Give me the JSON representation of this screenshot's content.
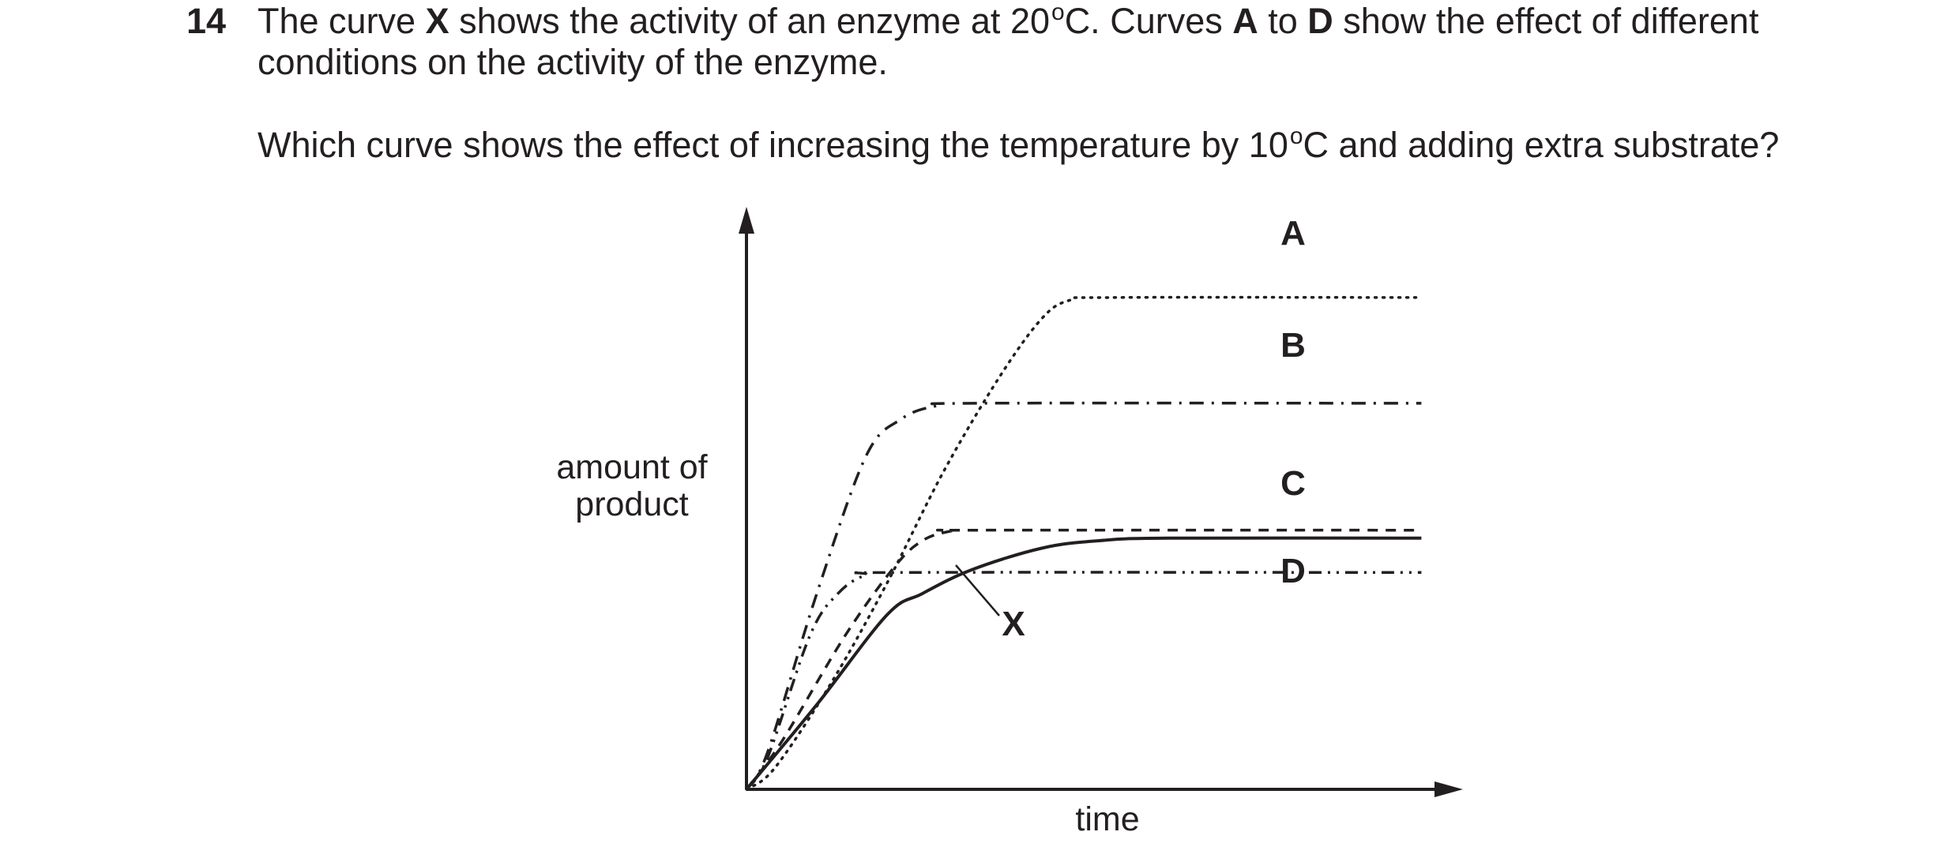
{
  "question": {
    "number": "14",
    "line1": {
      "t1": "The curve ",
      "b1": "X",
      "t2": " shows the activity of an enzyme at 20",
      "deg": "o",
      "t3": "C. Curves ",
      "b2": "A",
      "t4": " to ",
      "b3": "D",
      "t5": " show the effect of different"
    },
    "line2": "conditions on the activity of the enzyme.",
    "line3": {
      "t1": "Which curve shows the effect of increasing the temperature by 10",
      "deg": "o",
      "t2": "C and adding extra substrate?"
    }
  },
  "chart_data": {
    "type": "line",
    "xlabel": "time",
    "ylabel": [
      "amount of",
      "product"
    ],
    "xlim": [
      0,
      100
    ],
    "ylim": [
      0,
      100
    ],
    "ticks": "none",
    "grid": false,
    "legend": "labels beside curves",
    "series": [
      {
        "name": "A",
        "style": "dotted",
        "points": [
          [
            0,
            0
          ],
          [
            4,
            4
          ],
          [
            12,
            20
          ],
          [
            20,
            39
          ],
          [
            28,
            60
          ],
          [
            36,
            78
          ],
          [
            42,
            89
          ],
          [
            46,
            92.5
          ],
          [
            52,
            93
          ],
          [
            96,
            93
          ]
        ]
      },
      {
        "name": "B",
        "style": "dash-dot",
        "points": [
          [
            0,
            0
          ],
          [
            3,
            7
          ],
          [
            10,
            37
          ],
          [
            17,
            63
          ],
          [
            22,
            70
          ],
          [
            27,
            72.5
          ],
          [
            33,
            73
          ],
          [
            96,
            73
          ]
        ]
      },
      {
        "name": "C",
        "style": "dashed",
        "points": [
          [
            0,
            0
          ],
          [
            5,
            9
          ],
          [
            14,
            29
          ],
          [
            21,
            42
          ],
          [
            25,
            47
          ],
          [
            29,
            48.8
          ],
          [
            33,
            49
          ],
          [
            96,
            49
          ]
        ]
      },
      {
        "name": "D",
        "style": "dash-dot-dot",
        "points": [
          [
            0,
            0
          ],
          [
            3,
            6
          ],
          [
            9,
            29
          ],
          [
            13,
            37
          ],
          [
            17,
            40.5
          ],
          [
            22,
            41
          ],
          [
            96,
            41
          ]
        ]
      },
      {
        "name": "X",
        "style": "solid",
        "points": [
          [
            0,
            0
          ],
          [
            10,
            16
          ],
          [
            20,
            33
          ],
          [
            25,
            37
          ],
          [
            32,
            41.5
          ],
          [
            42,
            45.6
          ],
          [
            50,
            47
          ],
          [
            60,
            47.5
          ],
          [
            96,
            47.5
          ]
        ]
      }
    ]
  }
}
